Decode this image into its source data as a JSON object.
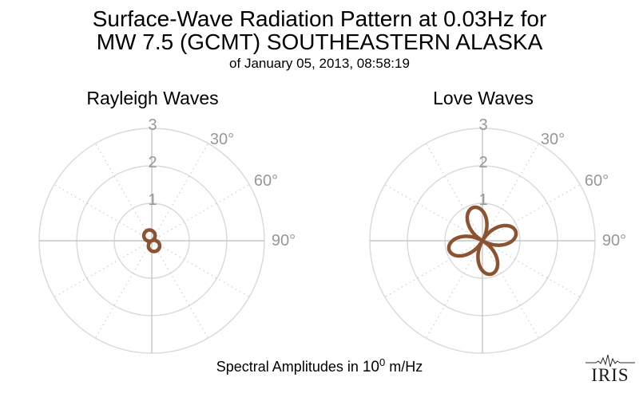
{
  "header": {
    "title_line1": "Surface-Wave Radiation Pattern at 0.03Hz for",
    "title_line2": "MW 7.5 (GCMT) SOUTHEASTERN ALASKA",
    "subtitle": "of January 05, 2013, 08:58:19"
  },
  "caption": {
    "prefix": "Spectral Amplitudes in ",
    "base": "10",
    "exponent": "0",
    "suffix": " m/Hz"
  },
  "logo": {
    "text": "IRIS"
  },
  "colors": {
    "pattern_stroke": "#8B5331",
    "grid_circle": "#D9D9D9",
    "axis_line": "#C6C6C6",
    "spoke_dotted": "#D3D3D3",
    "tick_label": "#979797",
    "title_text": "#000000",
    "center_dot": "#9A9A9A"
  },
  "chart_data": [
    {
      "type": "polar",
      "title": "Rayleigh Waves",
      "r_ticks": [
        1,
        2,
        3
      ],
      "r_max": 3,
      "angle_labels": [
        "30°",
        "60°",
        "90°"
      ],
      "angle_label_degrees": [
        30,
        60,
        90
      ],
      "spoke_step_deg": 30,
      "orientation": "0 degrees at top, clockwise",
      "pattern": {
        "shape": "two-lobe |cos(theta-phi)|",
        "lobes": 2,
        "amplitude": 0.3,
        "rotation_deg": -24
      }
    },
    {
      "type": "polar",
      "title": "Love Waves",
      "r_ticks": [
        1,
        2,
        3
      ],
      "r_max": 3,
      "angle_labels": [
        "30°",
        "60°",
        "90°"
      ],
      "angle_label_degrees": [
        30,
        60,
        90
      ],
      "spoke_step_deg": 30,
      "orientation": "0 degrees at top, clockwise",
      "pattern": {
        "shape": "four-lobe |cos(2(theta-phi))|",
        "lobes": 4,
        "amplitude": 0.92,
        "rotation_deg": -15
      }
    }
  ]
}
